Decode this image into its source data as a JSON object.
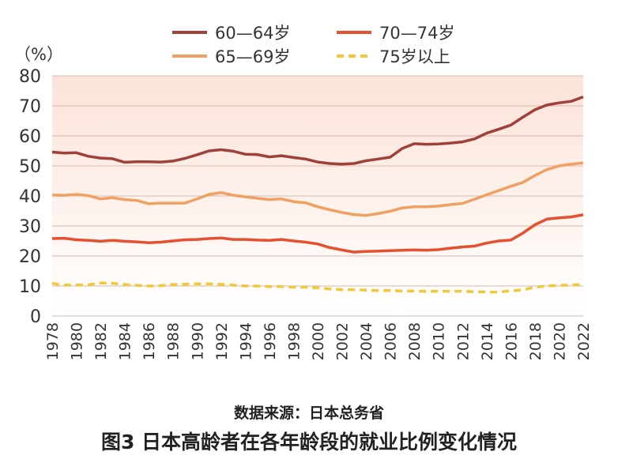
{
  "chart_data": {
    "type": "line",
    "unit_label": "（%）",
    "x": [
      1978,
      1979,
      1980,
      1981,
      1982,
      1983,
      1984,
      1985,
      1986,
      1987,
      1988,
      1989,
      1990,
      1991,
      1992,
      1993,
      1994,
      1995,
      1996,
      1997,
      1998,
      1999,
      2000,
      2001,
      2002,
      2003,
      2004,
      2005,
      2006,
      2007,
      2008,
      2009,
      2010,
      2011,
      2012,
      2013,
      2014,
      2015,
      2016,
      2017,
      2018,
      2019,
      2020,
      2021,
      2022
    ],
    "x_tick_labels": [
      "1978",
      "1980",
      "1982",
      "1984",
      "1986",
      "1988",
      "1990",
      "1992",
      "1994",
      "1996",
      "1998",
      "2000",
      "2002",
      "2004",
      "2006",
      "2008",
      "2010",
      "2012",
      "2014",
      "2016",
      "2018",
      "2020",
      "2022"
    ],
    "ylim": [
      0,
      80
    ],
    "y_ticks": [
      0,
      10,
      20,
      30,
      40,
      50,
      60,
      70,
      80
    ],
    "grid": true,
    "legend_position": "top",
    "series": [
      {
        "name": "60—64岁",
        "color": "#a0403a",
        "dash": false,
        "values": [
          54.6,
          54.3,
          54.4,
          53.2,
          52.6,
          52.4,
          51.2,
          51.4,
          51.4,
          51.3,
          51.6,
          52.5,
          53.7,
          55.0,
          55.4,
          54.9,
          53.9,
          53.8,
          53.0,
          53.4,
          52.8,
          52.3,
          51.3,
          50.8,
          50.6,
          50.8,
          51.7,
          52.3,
          52.9,
          55.8,
          57.4,
          57.2,
          57.3,
          57.6,
          58.0,
          59.0,
          60.9,
          62.2,
          63.6,
          66.2,
          68.7,
          70.3,
          71.0,
          71.5,
          73.0
        ]
      },
      {
        "name": "70—74岁",
        "color": "#e55030",
        "dash": false,
        "values": [
          25.8,
          25.9,
          25.4,
          25.2,
          24.9,
          25.2,
          24.9,
          24.7,
          24.4,
          24.6,
          25.0,
          25.4,
          25.5,
          25.8,
          26.0,
          25.5,
          25.5,
          25.3,
          25.2,
          25.5,
          25.0,
          24.6,
          24.0,
          22.8,
          22.0,
          21.3,
          21.5,
          21.6,
          21.8,
          21.9,
          22.0,
          21.9,
          22.1,
          22.6,
          23.0,
          23.3,
          24.3,
          25.0,
          25.3,
          27.6,
          30.4,
          32.3,
          32.7,
          33.0,
          33.7
        ]
      },
      {
        "name": "65—69岁",
        "color": "#f0a060",
        "dash": false,
        "values": [
          40.3,
          40.2,
          40.5,
          40.1,
          39.0,
          39.4,
          38.8,
          38.5,
          37.4,
          37.6,
          37.6,
          37.6,
          39.0,
          40.5,
          41.1,
          40.2,
          39.7,
          39.2,
          38.8,
          39.0,
          38.1,
          37.7,
          36.4,
          35.4,
          34.5,
          33.8,
          33.5,
          34.1,
          34.9,
          36.0,
          36.4,
          36.4,
          36.6,
          37.1,
          37.5,
          38.9,
          40.4,
          41.8,
          43.2,
          44.5,
          46.8,
          48.8,
          50.0,
          50.6,
          51.0
        ]
      },
      {
        "name": "75岁以上",
        "color": "#f0c838",
        "dash": true,
        "values": [
          10.9,
          10.3,
          10.3,
          10.4,
          11.0,
          10.9,
          10.5,
          10.2,
          10.0,
          10.1,
          10.5,
          10.6,
          10.7,
          10.7,
          10.6,
          10.3,
          10.0,
          10.0,
          9.8,
          9.8,
          9.6,
          9.6,
          9.4,
          9.0,
          8.8,
          8.8,
          8.6,
          8.5,
          8.5,
          8.3,
          8.3,
          8.2,
          8.2,
          8.2,
          8.2,
          8.1,
          8.0,
          8.0,
          8.4,
          8.7,
          9.6,
          10.0,
          10.2,
          10.3,
          10.5
        ]
      }
    ]
  },
  "source_text": "数据来源：日本总务省",
  "caption_text": "图3  日本高龄者在各年龄段的就业比例变化情况"
}
